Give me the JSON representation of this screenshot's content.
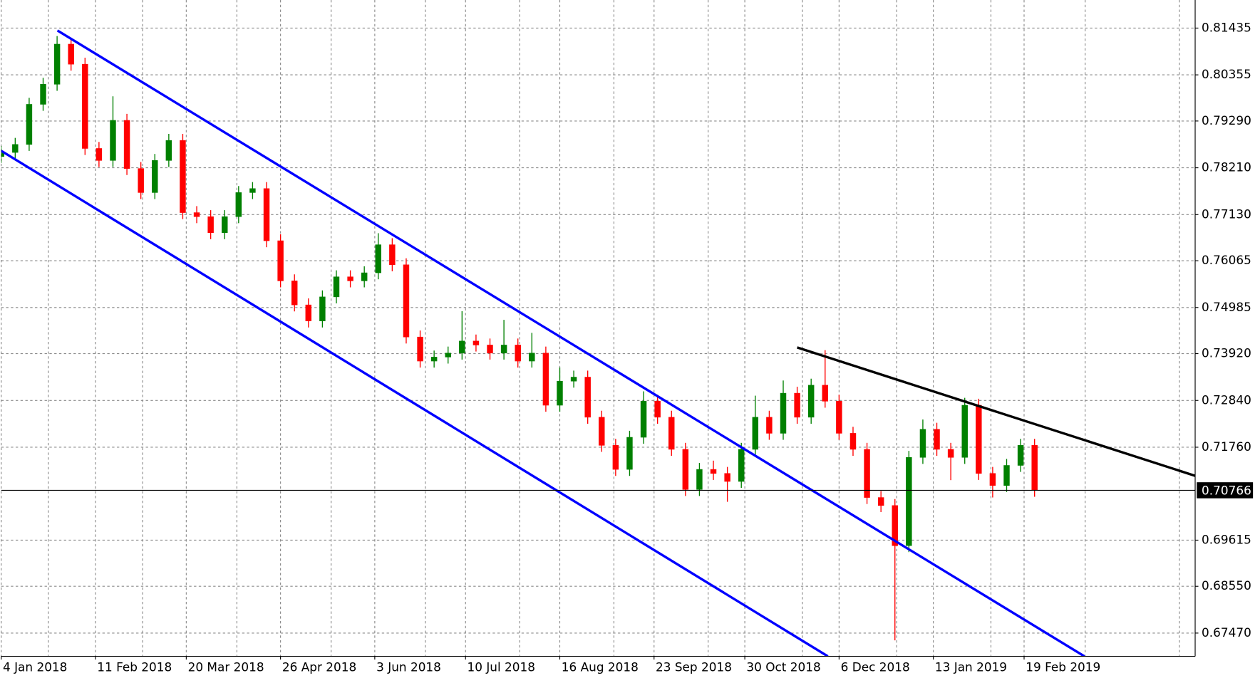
{
  "chart_data": {
    "type": "candlestick",
    "xlim": [
      0,
      342
    ],
    "ylim": [
      0.66933,
      0.82083
    ],
    "xticks": [
      {
        "value": 0,
        "label": "4 Jan 2018"
      },
      {
        "value": 27,
        "label": "11 Feb 2018"
      },
      {
        "value": 53,
        "label": "20 Mar 2018"
      },
      {
        "value": 80,
        "label": "26 Apr 2018"
      },
      {
        "value": 107,
        "label": "3 Jun 2018"
      },
      {
        "value": 133,
        "label": "10 Jul 2018"
      },
      {
        "value": 160,
        "label": "16 Aug 2018"
      },
      {
        "value": 187,
        "label": "23 Sep 2018"
      },
      {
        "value": 213,
        "label": "30 Oct 2018"
      },
      {
        "value": 240,
        "label": "6 Dec 2018"
      },
      {
        "value": 267,
        "label": "13 Jan 2019"
      },
      {
        "value": 293,
        "label": "19 Feb 2019"
      }
    ],
    "yticks": [
      0.81435,
      0.80355,
      {
        "value": 0.7929,
        "label": "0.79290"
      },
      {
        "value": 0.7821,
        "label": "0.78210"
      },
      {
        "value": 0.7713,
        "label": "0.77130"
      },
      0.76065,
      0.74985,
      {
        "value": 0.7392,
        "label": "0.73920"
      },
      {
        "value": 0.7284,
        "label": "0.72840"
      },
      {
        "value": 0.7176,
        "label": "0.71760"
      },
      0.69615,
      {
        "value": 0.6855,
        "label": "0.68550"
      },
      {
        "value": 0.6747,
        "label": "0.67470"
      }
    ],
    "grid": true,
    "up_color": "#008000",
    "down_color": "#ff0000",
    "current_price": 0.70766,
    "candles": {
      "x": [
        0,
        4,
        8,
        12,
        16,
        20,
        24,
        28,
        32,
        36,
        40,
        44,
        48,
        52,
        56,
        60,
        64,
        68,
        72,
        76,
        80,
        84,
        88,
        92,
        96,
        100,
        104,
        108,
        112,
        116,
        120,
        124,
        128,
        132,
        136,
        140,
        144,
        148,
        152,
        156,
        160,
        164,
        168,
        172,
        176,
        180,
        184,
        188,
        192,
        196,
        200,
        204,
        208,
        212,
        216,
        220,
        224,
        228,
        232,
        236,
        240,
        244,
        248,
        252,
        256,
        260,
        264,
        268,
        272,
        276,
        280,
        284,
        288,
        292,
        296
      ],
      "open": [
        0.7847,
        0.78564,
        0.78749,
        0.79675,
        0.80138,
        0.81064,
        0.80601,
        0.78656,
        0.78379,
        0.79305,
        0.78193,
        0.77638,
        0.78379,
        0.78842,
        0.77175,
        0.77082,
        0.76712,
        0.77082,
        0.77638,
        0.7773,
        0.76526,
        0.756,
        0.75045,
        0.74674,
        0.7523,
        0.75693,
        0.756,
        0.75786,
        0.76434,
        0.75971,
        0.74304,
        0.73748,
        0.73841,
        0.73933,
        0.74211,
        0.74119,
        0.73933,
        0.74119,
        0.73748,
        0.73933,
        0.72729,
        0.73285,
        0.73378,
        0.72452,
        0.71803,
        0.71248,
        0.71989,
        0.72822,
        0.72452,
        0.71711,
        0.70785,
        0.71248,
        0.71155,
        0.7097,
        0.71711,
        0.72452,
        0.72081,
        0.73007,
        0.72452,
        0.73192,
        0.72822,
        0.72081,
        0.71711,
        0.70599,
        0.70414,
        0.69488,
        0.71525,
        0.72174,
        0.71711,
        0.71525,
        0.72729,
        0.71155,
        0.70877,
        0.7134,
        0.71803
      ],
      "high": [
        0.78714,
        0.78899,
        0.79825,
        0.80288,
        0.8125,
        0.81214,
        0.80751,
        0.78806,
        0.7986,
        0.79455,
        0.78343,
        0.78529,
        0.78992,
        0.78992,
        0.77325,
        0.77232,
        0.77232,
        0.77788,
        0.7788,
        0.7788,
        0.76676,
        0.7575,
        0.75195,
        0.7538,
        0.75843,
        0.75843,
        0.75936,
        0.767,
        0.76584,
        0.76121,
        0.74454,
        0.73991,
        0.74083,
        0.749,
        0.74361,
        0.74269,
        0.747,
        0.74269,
        0.744,
        0.74083,
        0.736,
        0.73528,
        0.73528,
        0.72602,
        0.71953,
        0.72139,
        0.7305,
        0.72972,
        0.72602,
        0.71861,
        0.71398,
        0.7145,
        0.71305,
        0.71861,
        0.7295,
        0.72602,
        0.733,
        0.73157,
        0.73342,
        0.74,
        0.72972,
        0.72231,
        0.71861,
        0.70749,
        0.70564,
        0.71675,
        0.724,
        0.72324,
        0.71861,
        0.729,
        0.72879,
        0.71305,
        0.7149,
        0.71953,
        0.71953
      ],
      "low": [
        0.7832,
        0.78414,
        0.78599,
        0.79525,
        0.79988,
        0.80451,
        0.78506,
        0.78229,
        0.78229,
        0.78043,
        0.77488,
        0.77488,
        0.78229,
        0.77025,
        0.76932,
        0.76562,
        0.76562,
        0.76932,
        0.77488,
        0.76376,
        0.7545,
        0.74895,
        0.74524,
        0.74524,
        0.7508,
        0.7545,
        0.7545,
        0.75636,
        0.75821,
        0.74154,
        0.73598,
        0.73598,
        0.73691,
        0.73783,
        0.73969,
        0.73783,
        0.73783,
        0.73598,
        0.73598,
        0.72579,
        0.72579,
        0.73135,
        0.72302,
        0.71653,
        0.71098,
        0.71098,
        0.71839,
        0.72302,
        0.71561,
        0.70635,
        0.70635,
        0.71005,
        0.705,
        0.7082,
        0.71561,
        0.71931,
        0.71931,
        0.72302,
        0.72302,
        0.72672,
        0.71931,
        0.71561,
        0.70449,
        0.70264,
        0.67302,
        0.69338,
        0.71375,
        0.71561,
        0.71,
        0.71375,
        0.71005,
        0.706,
        0.70727,
        0.7119,
        0.70616
      ],
      "close": [
        0.78564,
        0.78749,
        0.79675,
        0.80138,
        0.81064,
        0.80601,
        0.78656,
        0.78379,
        0.79305,
        0.78193,
        0.77638,
        0.78379,
        0.78842,
        0.77175,
        0.77082,
        0.76712,
        0.77082,
        0.77638,
        0.7773,
        0.76526,
        0.756,
        0.75045,
        0.74674,
        0.7523,
        0.75693,
        0.756,
        0.75786,
        0.76434,
        0.75971,
        0.74304,
        0.73748,
        0.73841,
        0.73933,
        0.74211,
        0.74119,
        0.73933,
        0.74119,
        0.73748,
        0.73933,
        0.72729,
        0.73285,
        0.73378,
        0.72452,
        0.71803,
        0.71248,
        0.71989,
        0.72822,
        0.72452,
        0.71711,
        0.70785,
        0.71248,
        0.71155,
        0.7097,
        0.71711,
        0.72452,
        0.72081,
        0.73007,
        0.72452,
        0.73192,
        0.72822,
        0.72081,
        0.71711,
        0.70599,
        0.70414,
        0.69488,
        0.71525,
        0.72174,
        0.71711,
        0.71525,
        0.72729,
        0.71155,
        0.70877,
        0.7134,
        0.71803,
        0.70766
      ]
    },
    "trendlines": [
      {
        "color": "#0000ff",
        "x": [
          16.1,
          310.3
        ],
        "y": [
          0.81379,
          0.66933
        ]
      },
      {
        "color": "#0000ff",
        "x": [
          0,
          236.8
        ],
        "y": [
          0.78601,
          0.66933
        ]
      },
      {
        "color": "#000000",
        "x": [
          228.0,
          342
        ],
        "y": [
          0.74063,
          0.711
        ]
      }
    ]
  }
}
